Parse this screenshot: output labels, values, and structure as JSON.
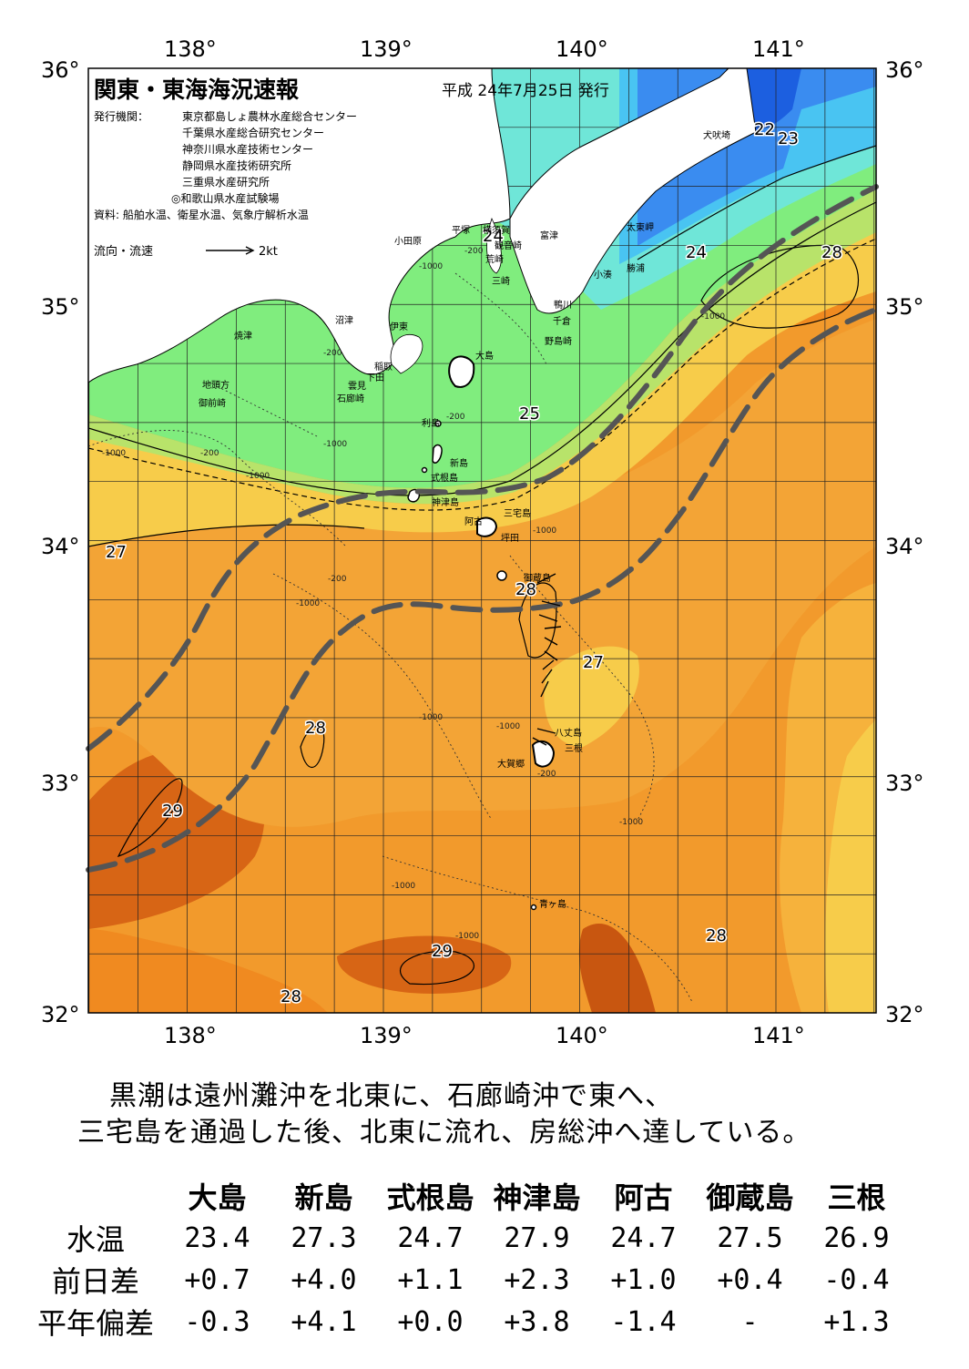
{
  "map": {
    "title": "関東・東海海況速報",
    "issue_date": "平成 24年7月25日 発行",
    "issuer_label": "発行機関：",
    "issuers": [
      "東京都島しょ農林水産総合センター",
      "千葉県水産総合研究センター",
      "神奈川県水産技術センター",
      "静岡県水産技術研究所",
      "三重県水産研究所",
      "◎和歌山県水産試験場"
    ],
    "source": "資料: 船舶水温、衛星水温、気象庁解析水温",
    "current_legend": "流向・流速",
    "current_scale": "2kt",
    "lon_ticks": [
      "138°",
      "139°",
      "140°",
      "141°"
    ],
    "lat_ticks": [
      "36°",
      "35°",
      "34°",
      "33°",
      "32°"
    ],
    "isotherm_labels": [
      "22",
      "23",
      "24",
      "24",
      "25",
      "27",
      "27",
      "28",
      "28",
      "28",
      "28",
      "28",
      "29",
      "29"
    ],
    "depth_labels": [
      "-200",
      "-1000"
    ],
    "places": {
      "inubo": "犬吠埼",
      "taito": "太東岬",
      "katsuura": "勝浦",
      "kominato": "小湊",
      "tomitsu": "富津",
      "kamogawa": "鴨川",
      "chikura": "千倉",
      "nojima": "野島崎",
      "yokosuka": "横須賀",
      "kannon": "観音崎",
      "araizaki": "荒崎",
      "misaki": "三崎",
      "hiratsuka": "平塚",
      "odawara": "小田原",
      "numazu": "沼津",
      "ito": "伊東",
      "yaizu": "焼津",
      "inatori": "稲取",
      "shimoda": "下田",
      "kumomi": "雲見",
      "irozaki": "石廊崎",
      "jitokata": "地頭方",
      "omaezaki": "御前崎",
      "oshima": "大島",
      "toshima": "利島",
      "niijima": "新島",
      "shikinejima": "式根島",
      "kozushima": "神津島",
      "miyakejima": "三宅島",
      "ako": "阿古",
      "tsubota": "坪田",
      "mikurajima": "御蔵島",
      "hachijojima": "八丈島",
      "mitsune": "三根",
      "okago": "大賀郷",
      "aogashima": "青ヶ島"
    },
    "colors": {
      "land": "#ffffff",
      "t21": "#1c5fe0",
      "t22": "#3a8cf0",
      "t23": "#49c4f2",
      "t24": "#6fe6d8",
      "t25": "#80ed7e",
      "t26": "#b8e36a",
      "t27": "#f7cc4a",
      "t27b": "#f6b23c",
      "t28": "#f29a2c",
      "t28b": "#f08a20",
      "t29": "#d76515",
      "t29b": "#c85610",
      "kuroshio": "#555555"
    }
  },
  "caption": {
    "line1": "黒潮は遠州灘沖を北東に、石廊崎沖で東へ、",
    "line2": "三宅島を通過した後、北東に流れ、房総沖へ達している。"
  },
  "table": {
    "headers": [
      "大島",
      "新島",
      "式根島",
      "神津島",
      "阿古",
      "御蔵島",
      "三根"
    ],
    "rows": [
      {
        "label": "水温",
        "values": [
          "23.4",
          "27.3",
          "24.7",
          "27.9",
          "24.7",
          "27.5",
          "26.9"
        ]
      },
      {
        "label": "前日差",
        "values": [
          "+0.7",
          "+4.0",
          "+1.1",
          "+2.3",
          "+1.0",
          "+0.4",
          "-0.4"
        ]
      },
      {
        "label": "平年偏差",
        "values": [
          "-0.3",
          "+4.1",
          "+0.0",
          "+3.8",
          "-1.4",
          "-",
          "+1.3"
        ]
      }
    ]
  }
}
